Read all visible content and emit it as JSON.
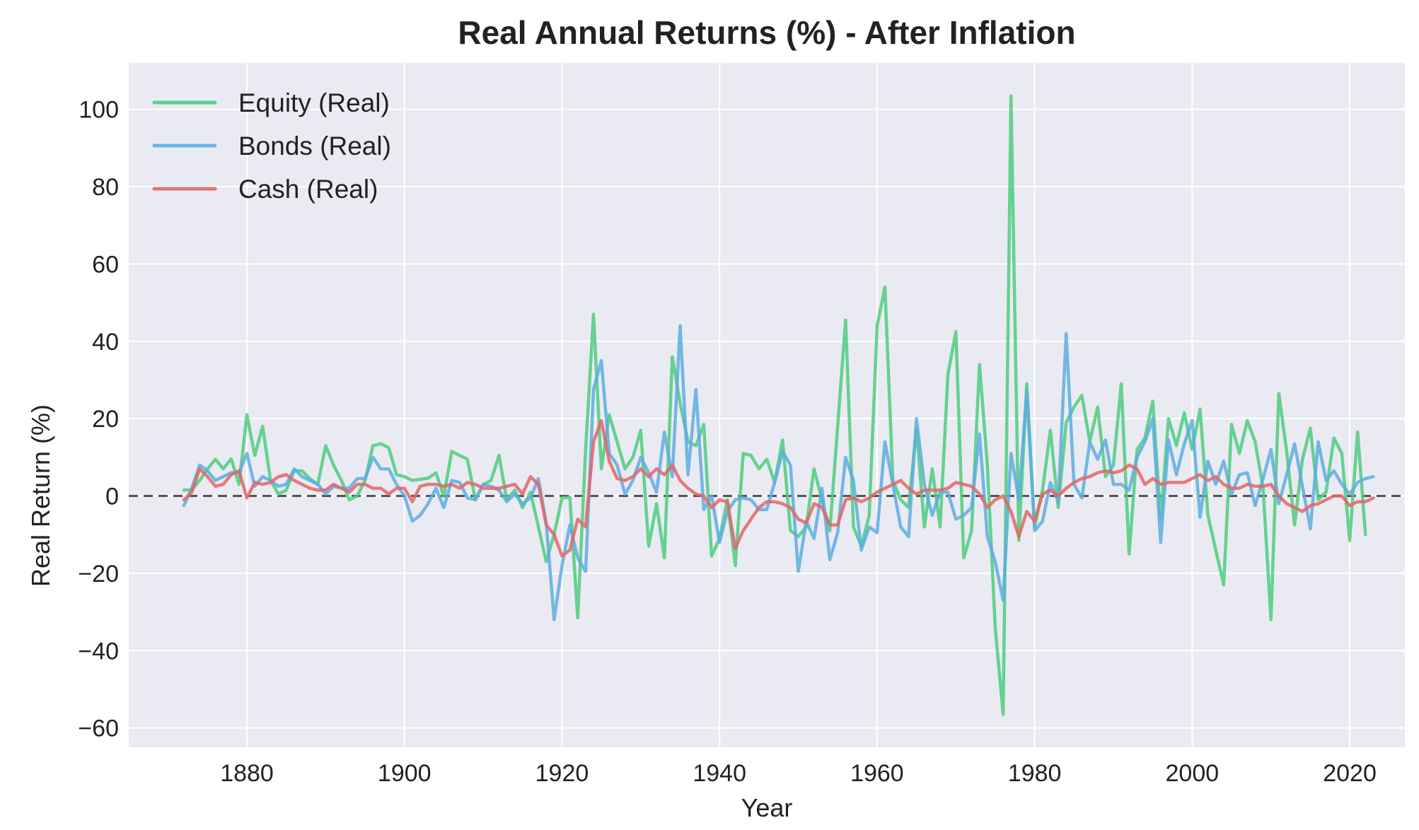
{
  "chart_data": {
    "type": "line",
    "title": "Real Annual Returns (%) - After Inflation",
    "xlabel": "Year",
    "ylabel": "Real Return (%)",
    "xlim": [
      1865,
      2027
    ],
    "ylim": [
      -65,
      112
    ],
    "xticks": [
      1880,
      1900,
      1920,
      1940,
      1960,
      1980,
      2000,
      2020
    ],
    "yticks": [
      -60,
      -40,
      -20,
      0,
      20,
      40,
      60,
      80,
      100
    ],
    "ytick_labels": [
      "−60",
      "−40",
      "−20",
      "0",
      "20",
      "40",
      "60",
      "80",
      "100"
    ],
    "grid": true,
    "reference_line": {
      "y": 0,
      "style": "dashed",
      "color": "#555555"
    },
    "legend_position": "top-left",
    "x_start": 1872,
    "x_end": 2020,
    "series": [
      {
        "name": "Equity (Real)",
        "color": "#4dcc7f",
        "values": [
          1.5,
          1.6,
          4,
          7,
          9.5,
          7,
          9.6,
          3,
          21,
          10.5,
          18,
          4,
          0.5,
          1.5,
          6.5,
          6.5,
          4.5,
          3,
          13,
          8,
          4,
          -1,
          0,
          4,
          13,
          13.5,
          12.5,
          5.5,
          5,
          4,
          4.3,
          4.6,
          6,
          0,
          11.5,
          10.5,
          9.5,
          -1,
          3,
          4,
          10.5,
          -1,
          1.5,
          -3,
          1,
          -8,
          -17,
          -10,
          -0.5,
          -0.3,
          -31.5,
          12,
          47,
          7,
          21,
          14,
          7,
          10,
          17,
          -13,
          -2,
          -16,
          36,
          24,
          14,
          13,
          18.5,
          -15.5,
          -11,
          -1,
          -18,
          11,
          10.5,
          7,
          9.5,
          3.5,
          14.5,
          -9,
          -10.5,
          -8,
          7,
          -1,
          -9,
          18,
          45.5,
          -8,
          -13,
          -5,
          44,
          54,
          4,
          -1,
          -3,
          17.5,
          -8,
          7,
          -8,
          31.5,
          42.5,
          -16,
          -9,
          34,
          8,
          -34,
          -56.5,
          103.5,
          -11.5,
          29,
          -8,
          1.5,
          17,
          -3,
          19,
          23,
          26,
          14,
          23,
          5,
          8,
          29,
          -15,
          12,
          15,
          24.5,
          -6,
          20,
          13,
          21.5,
          12,
          22.5,
          -5,
          -14,
          -23,
          18.5,
          11,
          19.5,
          14,
          2,
          -32,
          26.5,
          11.5,
          -7.5,
          9.5,
          17.5,
          -1,
          1,
          15,
          11,
          -11.5,
          16.5,
          -10
        ]
      },
      {
        "name": "Bonds (Real)",
        "color": "#5dade2",
        "values": [
          -2.5,
          2,
          8,
          6.5,
          4,
          5,
          6,
          6,
          11,
          2.5,
          5,
          4,
          2.5,
          3,
          7,
          5,
          4,
          3,
          0.5,
          2.5,
          2,
          2,
          4.5,
          4.5,
          10,
          7,
          7,
          3,
          0,
          -6.5,
          -5,
          -2,
          2,
          -3,
          4,
          3.5,
          -0.5,
          -1,
          3,
          2.5,
          1.5,
          -1.5,
          0.5,
          -2,
          -0.5,
          4.5,
          -7,
          -32,
          -18,
          -7.5,
          -16,
          -19.5,
          27.5,
          35,
          11,
          8,
          0.5,
          4,
          10,
          6,
          1,
          16.5,
          5,
          44,
          5.5,
          27.5,
          -3.5,
          0,
          -12,
          -4,
          -1,
          -0.5,
          -1,
          -3.5,
          -3.5,
          3.5,
          11.5,
          8,
          -19.5,
          -6.5,
          -11,
          2,
          -16.5,
          -9.5,
          10,
          4,
          -14,
          -8,
          -9.5,
          14,
          3,
          -8,
          -10.5,
          20,
          3,
          -5,
          1,
          1,
          -6,
          -5,
          -3,
          16,
          -10.5,
          -17,
          -27,
          11,
          -1,
          27,
          -9,
          -6.5,
          3.5,
          -1.5,
          42,
          3,
          -0.5,
          14,
          9.5,
          14.5,
          3,
          3,
          1.5,
          10,
          14,
          20,
          -12,
          14.5,
          5.5,
          13.5,
          19.5,
          -5.5,
          9,
          3,
          9,
          0.5,
          5.5,
          6,
          -2.5,
          4.5,
          12,
          -2,
          5.5,
          13.5,
          2.5,
          -8.5,
          14,
          4,
          6.5,
          3,
          0.5,
          3.5,
          4.5,
          5
        ]
      },
      {
        "name": "Cash (Real)",
        "color": "#e06666",
        "values": [
          -1,
          1,
          7,
          5,
          2.5,
          3,
          5.5,
          6.5,
          -0.5,
          3.5,
          3,
          3.5,
          5,
          5.5,
          4,
          3,
          2,
          1.5,
          1.5,
          3,
          2,
          1,
          3,
          3,
          2,
          2,
          0.5,
          2,
          2,
          -1.5,
          2.5,
          3,
          3,
          2.5,
          3,
          2,
          3.5,
          3,
          2,
          2,
          2,
          2.5,
          3,
          0.5,
          5,
          3,
          -7.5,
          -10,
          -15.5,
          -14,
          -6,
          -8,
          14,
          19.5,
          9,
          4.5,
          4,
          5,
          7,
          5,
          7,
          5.5,
          8,
          4,
          2,
          0.5,
          0,
          -3,
          -1,
          -1.5,
          -13.5,
          -9,
          -6,
          -3,
          -1.5,
          -1.5,
          -2,
          -3,
          -6,
          -7,
          -2,
          -3,
          -7.5,
          -7.5,
          -1,
          -0.5,
          -1.5,
          -0.5,
          1,
          2,
          3,
          4,
          2,
          0.5,
          1.5,
          1.5,
          1.5,
          2,
          3.5,
          3,
          2.5,
          0.5,
          -3,
          -1,
          0,
          -4,
          -10.5,
          -4,
          -6.5,
          0.5,
          1.5,
          0,
          2,
          3.5,
          4.5,
          5,
          6,
          6.5,
          6,
          6.5,
          8,
          7,
          3,
          4.5,
          3,
          3.5,
          3.5,
          3.5,
          4.5,
          5.5,
          4,
          5,
          3,
          2,
          2,
          3,
          2.5,
          2.5,
          3,
          0,
          -2,
          -3,
          -4,
          -2.5,
          -2,
          -1,
          0,
          0,
          -2.5,
          -1.5,
          -1.5,
          -0.5
        ]
      }
    ]
  }
}
